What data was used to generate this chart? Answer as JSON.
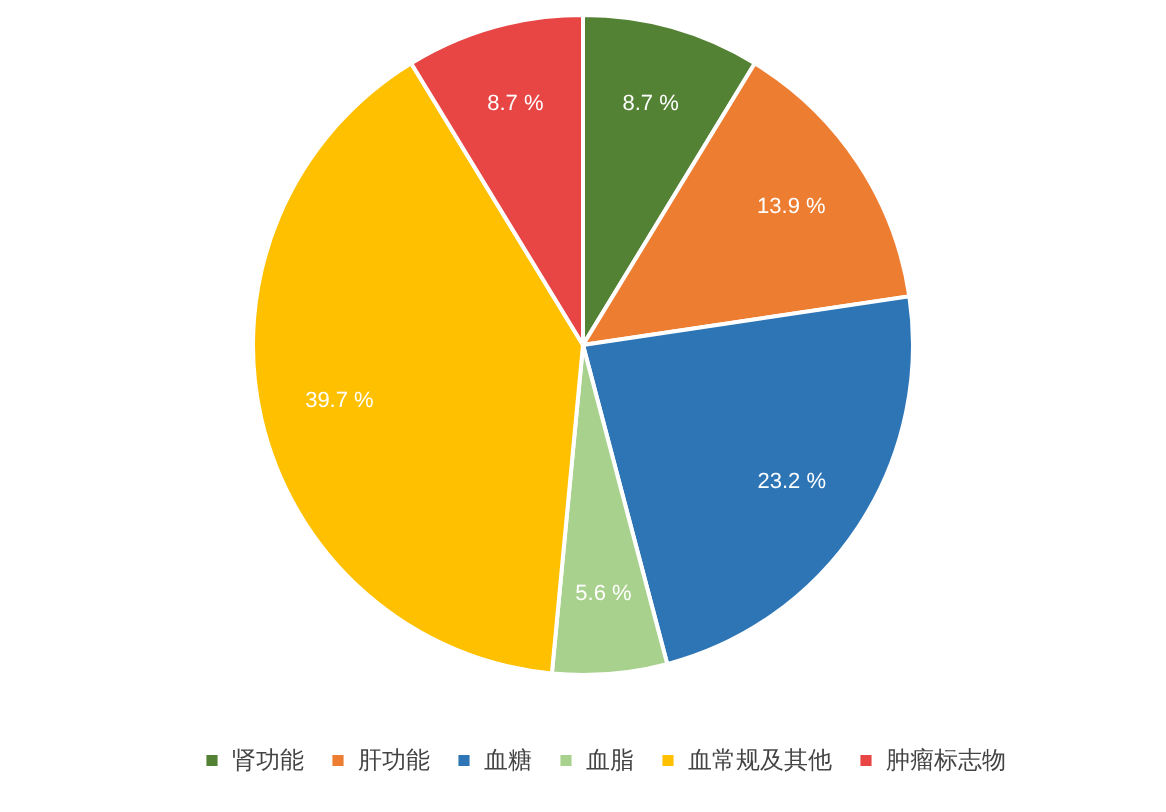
{
  "chart_data": {
    "type": "pie",
    "categories": [
      "肾功能",
      "肝功能",
      "血糖",
      "血脂",
      "血常规及其他",
      "肿瘤标志物"
    ],
    "values": [
      8.7,
      13.9,
      23.2,
      5.6,
      39.7,
      8.7
    ],
    "value_labels": [
      "8.7 %",
      "13.9 %",
      "23.2 %",
      "5.6 %",
      "39.7 %",
      "8.7 %"
    ],
    "colors": [
      "#548235",
      "#ed7d31",
      "#2e75b6",
      "#a9d18e",
      "#ffc000",
      "#e84545"
    ],
    "legend": "bottom"
  }
}
